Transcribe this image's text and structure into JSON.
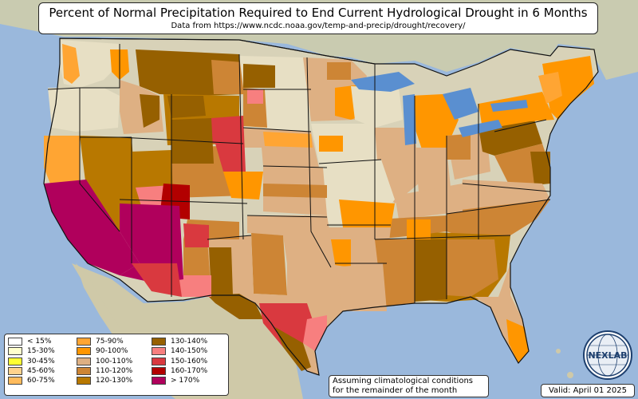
{
  "title": "Percent of Normal Precipitation Required to End Current Hydrological Drought in 6 Months",
  "subtitle": "Data from https://www.ncdc.noaa.gov/temp-and-precip/drought/recovery/",
  "legend": {
    "items": [
      {
        "label": "< 15%",
        "color": "#ffffff"
      },
      {
        "label": "15-30%",
        "color": "#ffffcc"
      },
      {
        "label": "30-45%",
        "color": "#ffff33"
      },
      {
        "label": "45-60%",
        "color": "#ffd28c"
      },
      {
        "label": "60-75%",
        "color": "#ffbb5c"
      },
      {
        "label": "75-90%",
        "color": "#ffa533"
      },
      {
        "label": "90-100%",
        "color": "#ff9600"
      },
      {
        "label": "100-110%",
        "color": "#deb083"
      },
      {
        "label": "110-120%",
        "color": "#cd8535"
      },
      {
        "label": "120-130%",
        "color": "#b87800"
      },
      {
        "label": "130-140%",
        "color": "#966000"
      },
      {
        "label": "140-150%",
        "color": "#f77f7f"
      },
      {
        "label": "150-160%",
        "color": "#d9393f"
      },
      {
        "label": "160-170%",
        "color": "#b20000"
      },
      {
        "label": "> 170%",
        "color": "#b0005c"
      }
    ]
  },
  "note": {
    "line1": "Assuming climatological conditions",
    "line2": "for the remainder of the month"
  },
  "valid": "Valid: April 01 2025",
  "logo": {
    "text": "NEXLAB",
    "icon": "globe-logo-icon"
  },
  "colors": {
    "ocean": "#9ab8dc",
    "land": "#d8d2b8",
    "lakes": "#5a8fd0",
    "border": "#111111"
  }
}
